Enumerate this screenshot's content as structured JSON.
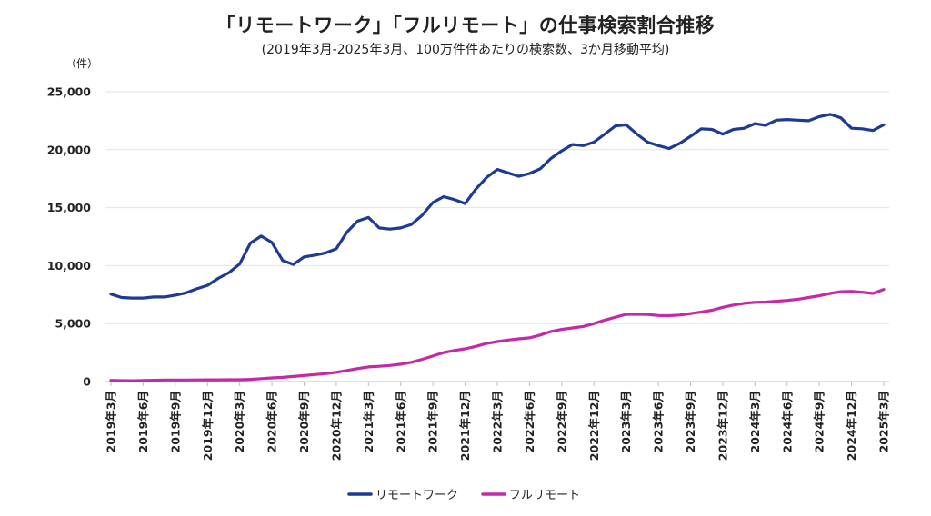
{
  "chart_data": {
    "type": "line",
    "title": "「リモートワーク」「フルリモート」の仕事検索割合推移",
    "subtitle": "(2019年3月-2025年3月、100万件件あたりの検索数、3か月移動平均)",
    "y_unit_label": "（件）",
    "ylim": [
      0,
      25000
    ],
    "y_ticks": [
      "0",
      "5,000",
      "10,000",
      "15,000",
      "20,000",
      "25,000"
    ],
    "y_tick_values": [
      0,
      5000,
      10000,
      15000,
      20000,
      25000
    ],
    "grid": true,
    "legend_position": "bottom",
    "x": [
      "2019年3月",
      "2019年4月",
      "2019年5月",
      "2019年6月",
      "2019年7月",
      "2019年8月",
      "2019年9月",
      "2019年10月",
      "2019年11月",
      "2019年12月",
      "2020年1月",
      "2020年2月",
      "2020年3月",
      "2020年4月",
      "2020年5月",
      "2020年6月",
      "2020年7月",
      "2020年8月",
      "2020年9月",
      "2020年10月",
      "2020年11月",
      "2020年12月",
      "2021年1月",
      "2021年2月",
      "2021年3月",
      "2021年4月",
      "2021年5月",
      "2021年6月",
      "2021年7月",
      "2021年8月",
      "2021年9月",
      "2021年10月",
      "2021年11月",
      "2021年12月",
      "2022年1月",
      "2022年2月",
      "2022年3月",
      "2022年4月",
      "2022年5月",
      "2022年6月",
      "2022年7月",
      "2022年8月",
      "2022年9月",
      "2022年10月",
      "2022年11月",
      "2022年12月",
      "2023年1月",
      "2023年2月",
      "2023年3月",
      "2023年4月",
      "2023年5月",
      "2023年6月",
      "2023年7月",
      "2023年8月",
      "2023年9月",
      "2023年10月",
      "2023年11月",
      "2023年12月",
      "2024年1月",
      "2024年2月",
      "2024年3月",
      "2024年4月",
      "2024年5月",
      "2024年6月",
      "2024年7月",
      "2024年8月",
      "2024年9月",
      "2024年10月",
      "2024年11月",
      "2024年12月",
      "2025年1月",
      "2025年2月",
      "2025年3月"
    ],
    "x_tick_labels": [
      "2019年3月",
      "2019年6月",
      "2019年9月",
      "2019年12月",
      "2020年3月",
      "2020年6月",
      "2020年9月",
      "2020年12月",
      "2021年3月",
      "2021年6月",
      "2021年9月",
      "2021年12月",
      "2022年3月",
      "2022年6月",
      "2022年9月",
      "2022年12月",
      "2023年3月",
      "2023年6月",
      "2023年9月",
      "2023年12月",
      "2024年3月",
      "2024年6月",
      "2024年9月",
      "2024年12月",
      "2025年3月"
    ],
    "series": [
      {
        "name": "リモートワーク",
        "color": "#1f3a93",
        "values": [
          7550,
          7250,
          7200,
          7200,
          7300,
          7300,
          7450,
          7650,
          8000,
          8300,
          8900,
          9400,
          10150,
          11950,
          12550,
          12000,
          10450,
          10100,
          10750,
          10900,
          11100,
          11450,
          12900,
          13850,
          14150,
          13250,
          13150,
          13250,
          13550,
          14350,
          15450,
          15950,
          15700,
          15350,
          16600,
          17600,
          18300,
          18000,
          17700,
          17950,
          18350,
          19250,
          19900,
          20450,
          20350,
          20650,
          21350,
          22050,
          22150,
          21350,
          20650,
          20350,
          20100,
          20550,
          21150,
          21800,
          21750,
          21350,
          21750,
          21850,
          22250,
          22100,
          22550,
          22600,
          22550,
          22500,
          22850,
          23050,
          22750,
          21850,
          21800,
          21650,
          22150
        ]
      },
      {
        "name": "フルリモート",
        "color": "#c42aa5",
        "values": [
          100,
          80,
          70,
          90,
          110,
          130,
          130,
          130,
          140,
          150,
          150,
          160,
          160,
          190,
          250,
          310,
          360,
          440,
          520,
          600,
          680,
          800,
          960,
          1120,
          1260,
          1320,
          1390,
          1500,
          1660,
          1920,
          2200,
          2500,
          2680,
          2820,
          3030,
          3280,
          3450,
          3580,
          3680,
          3770,
          4010,
          4320,
          4500,
          4620,
          4750,
          5000,
          5300,
          5550,
          5800,
          5810,
          5780,
          5700,
          5680,
          5740,
          5860,
          6000,
          6150,
          6400,
          6600,
          6750,
          6830,
          6860,
          6930,
          7000,
          7100,
          7250,
          7400,
          7600,
          7750,
          7780,
          7700,
          7600,
          7950
        ]
      }
    ]
  }
}
